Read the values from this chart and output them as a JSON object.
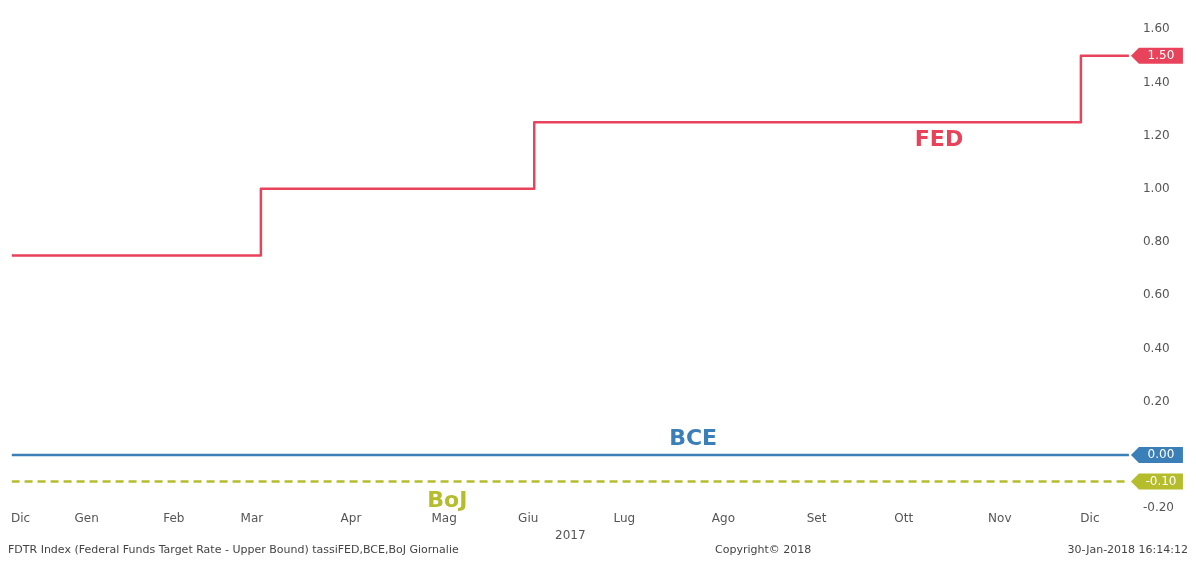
{
  "chart_data": {
    "type": "step",
    "xlabel": "2017",
    "xlim": [
      "2016-12-22",
      "2017-12-29"
    ],
    "xticks": [
      {
        "value": "2016-12-25",
        "label": "Dic"
      },
      {
        "value": "2017-01-16",
        "label": "Gen"
      },
      {
        "value": "2017-02-14",
        "label": "Feb"
      },
      {
        "value": "2017-03-12",
        "label": "Mar"
      },
      {
        "value": "2017-04-14",
        "label": "Apr"
      },
      {
        "value": "2017-05-15",
        "label": "Mag"
      },
      {
        "value": "2017-06-12",
        "label": "Giu"
      },
      {
        "value": "2017-07-14",
        "label": "Lug"
      },
      {
        "value": "2017-08-16",
        "label": "Ago"
      },
      {
        "value": "2017-09-16",
        "label": "Set"
      },
      {
        "value": "2017-10-15",
        "label": "Ott"
      },
      {
        "value": "2017-11-16",
        "label": "Nov"
      },
      {
        "value": "2017-12-16",
        "label": "Dic"
      }
    ],
    "ylim": [
      -0.2,
      1.6
    ],
    "yticks": [
      {
        "value": -0.2,
        "label": "-0.20"
      },
      {
        "value": 0.2,
        "label": "0.20"
      },
      {
        "value": 0.4,
        "label": "0.40"
      },
      {
        "value": 0.6,
        "label": "0.60"
      },
      {
        "value": 0.8,
        "label": "0.80"
      },
      {
        "value": 1.0,
        "label": "1.00"
      },
      {
        "value": 1.2,
        "label": "1.20"
      },
      {
        "value": 1.4,
        "label": "1.40"
      },
      {
        "value": 1.6,
        "label": "1.60"
      }
    ],
    "grid": false,
    "legend": false,
    "series": [
      {
        "name": "FED",
        "color": "#e8435a",
        "line_style": "solid",
        "x": [
          "2016-12-22",
          "2017-03-15",
          "2017-06-14",
          "2017-12-13",
          "2017-12-29"
        ],
        "values": [
          0.75,
          1.0,
          1.25,
          1.5,
          1.5
        ],
        "value_labels": [
          null,
          null,
          null,
          null,
          "1.50"
        ]
      },
      {
        "name": "BCE",
        "color": "#3a7fb8",
        "line_style": "solid",
        "x": [
          "2016-12-22",
          "2017-12-29"
        ],
        "values": [
          0.0,
          0.0
        ],
        "value_labels": [
          null,
          "0.00"
        ]
      },
      {
        "name": "BoJ",
        "color": "#b5bd2c",
        "line_style": "dashed",
        "x": [
          "2016-12-22",
          "2017-12-29"
        ],
        "values": [
          -0.1,
          -0.1
        ],
        "value_labels": [
          null,
          "-0.10"
        ]
      }
    ],
    "annotations": [
      "FDTR Index (Federal Funds Target Rate - Upper Bound) tassiFED,BCE,BoJ  Giornalie",
      "Copyright© 2018",
      "30-Jan-2018 16:14:12"
    ]
  }
}
